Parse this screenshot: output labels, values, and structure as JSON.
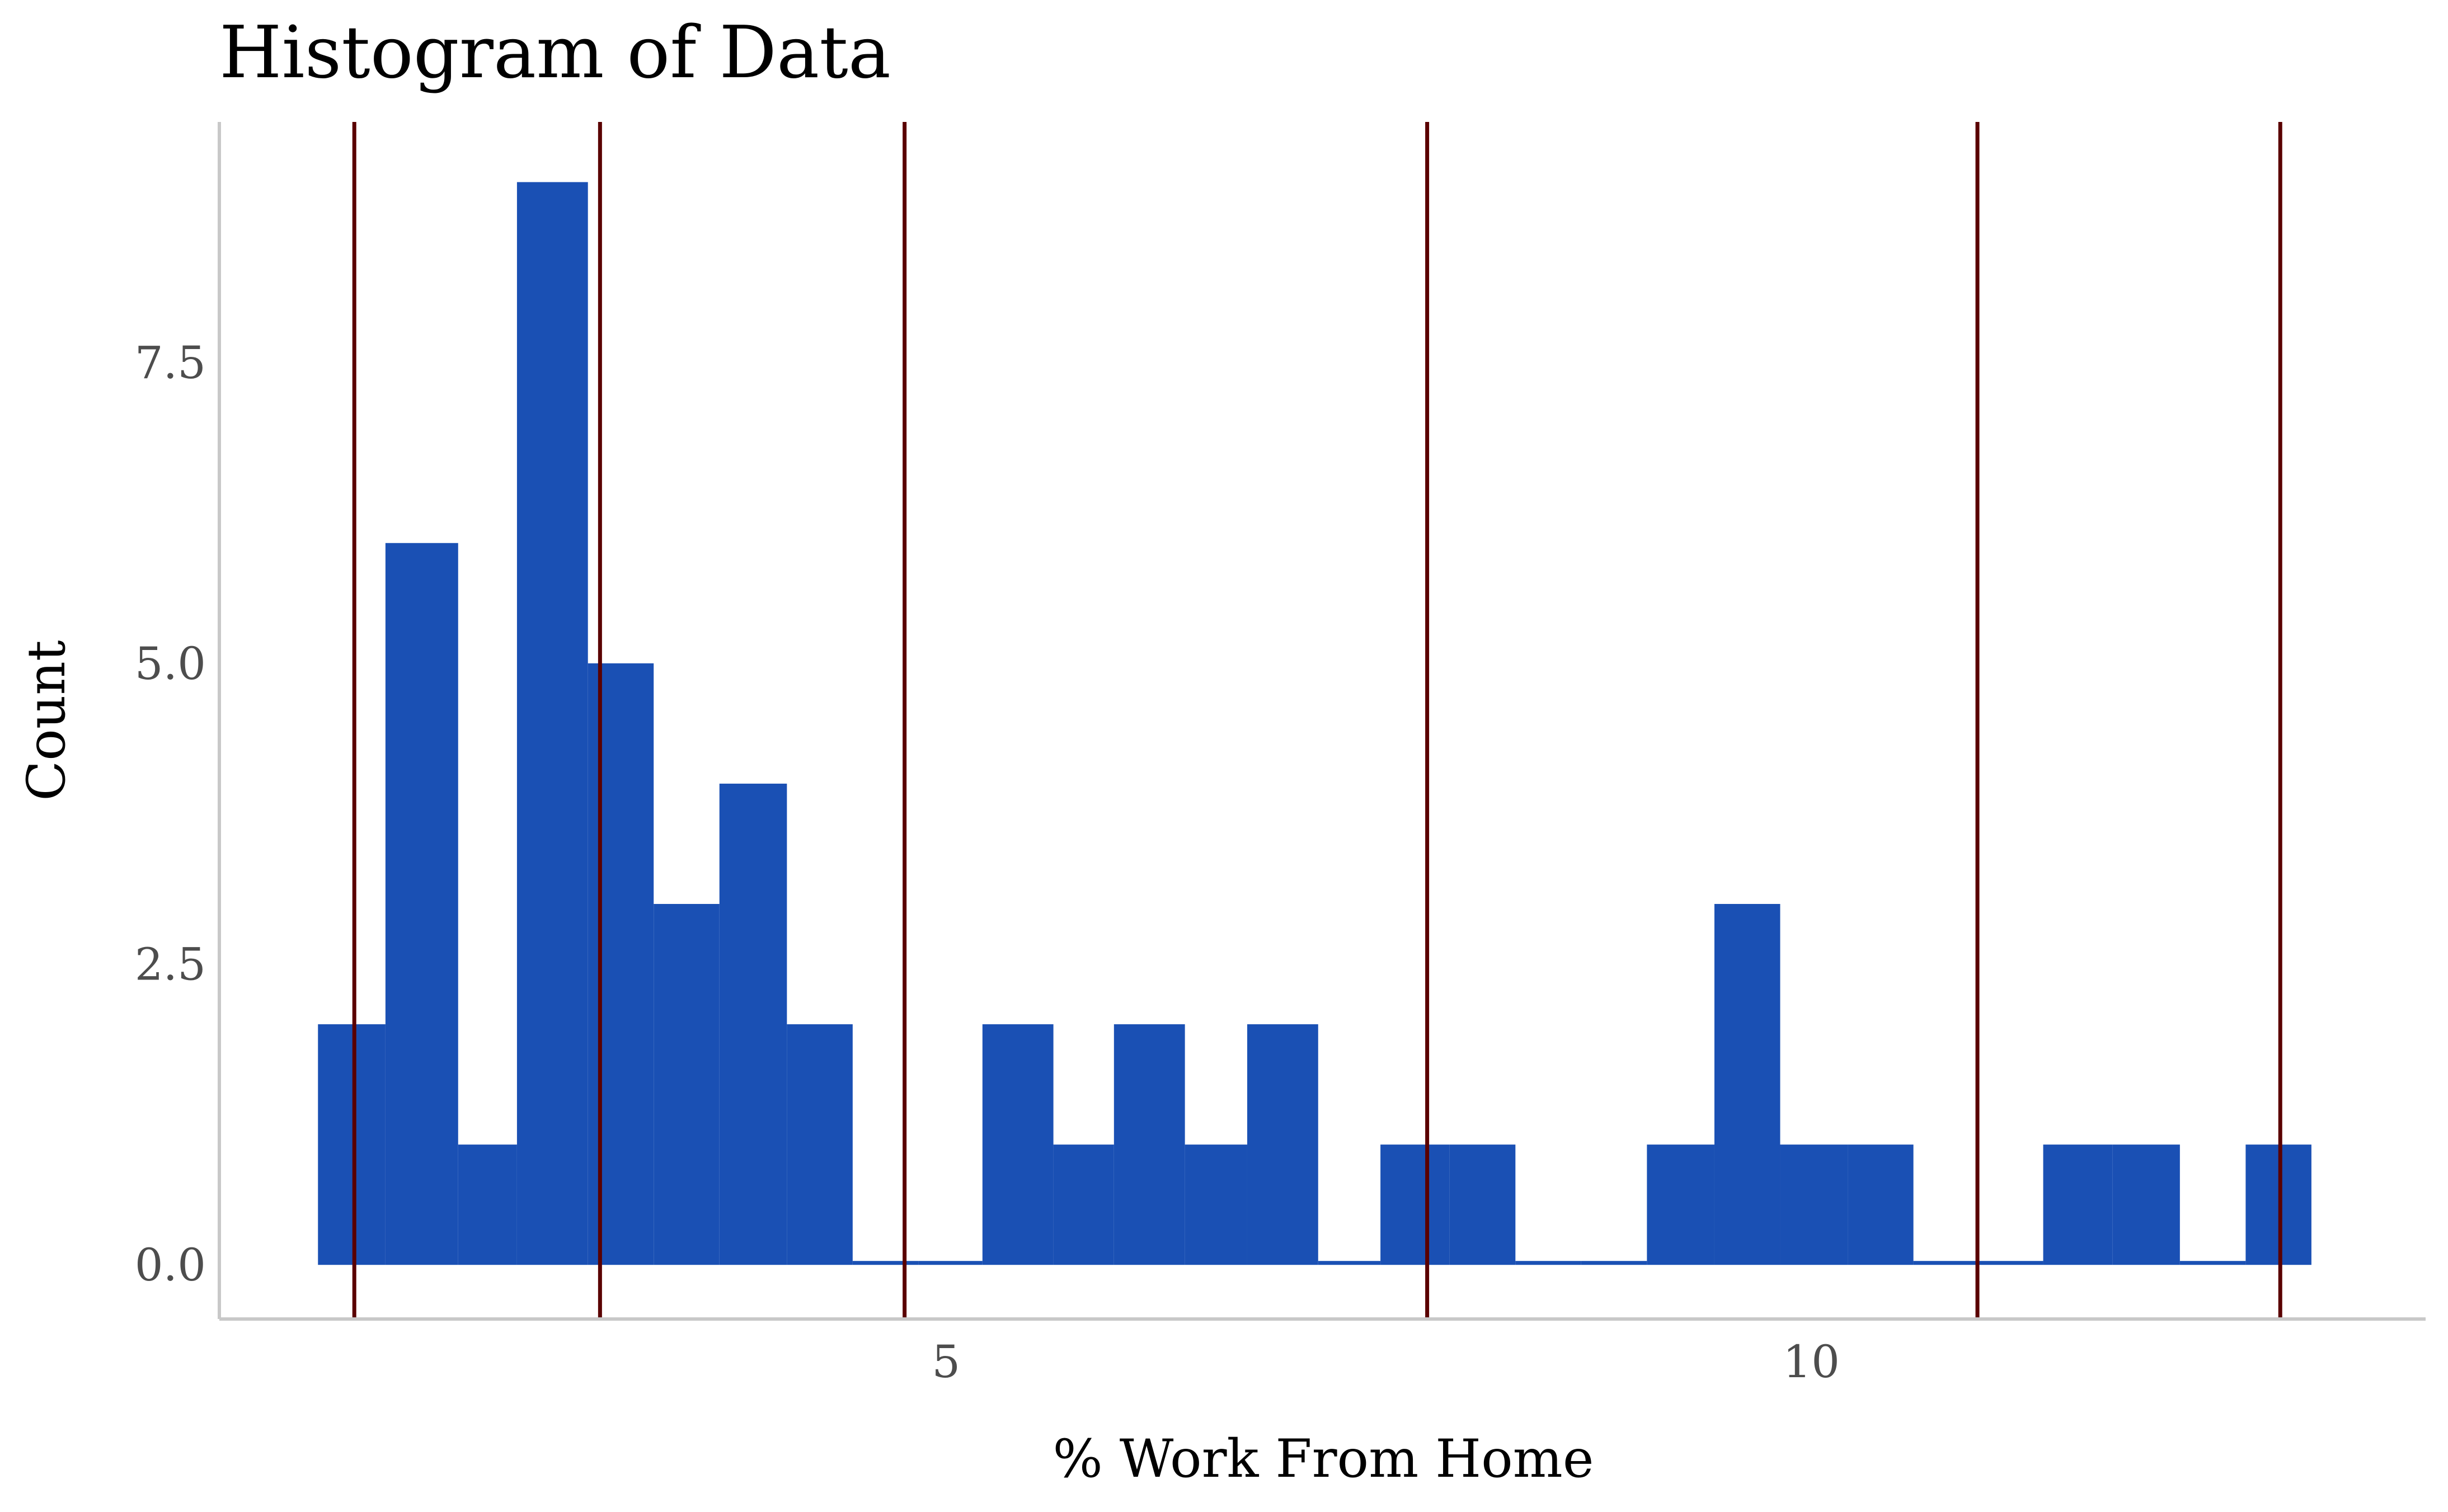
{
  "chart_data": {
    "type": "bar",
    "title": "Histogram of Data",
    "xlabel": "% Work From Home",
    "ylabel": "Count",
    "bar_color": "#1a50b4",
    "line_color": "#5a0000",
    "xlim": [
      0.8,
      13.55
    ],
    "ylim": [
      -0.45,
      9.5
    ],
    "x_ticks": [
      5,
      10
    ],
    "x_tick_labels": [
      "5",
      "10"
    ],
    "y_ticks": [
      0,
      2.5,
      5,
      7.5
    ],
    "y_tick_labels": [
      "0.0",
      "2.5",
      "5.0",
      "7.5"
    ],
    "bin_edges": [
      1.37,
      1.76,
      2.18,
      2.52,
      2.93,
      3.31,
      3.69,
      4.08,
      4.46,
      4.84,
      5.21,
      5.62,
      5.97,
      6.38,
      6.74,
      7.15,
      7.51,
      7.91,
      8.29,
      8.67,
      9.05,
      9.44,
      9.82,
      10.21,
      10.59,
      10.97,
      11.34,
      11.74,
      12.13,
      12.51,
      12.89
    ],
    "counts": [
      2,
      6,
      1,
      9,
      5,
      3,
      4,
      2,
      0,
      0,
      2,
      1,
      2,
      1,
      2,
      0,
      1,
      1,
      0,
      0,
      1,
      3,
      1,
      1,
      0,
      0,
      1,
      1,
      0,
      1
    ],
    "vertical_lines_x": [
      1.58,
      3.0,
      4.76,
      7.78,
      10.96,
      12.71
    ],
    "grid": false,
    "legend": "none"
  }
}
